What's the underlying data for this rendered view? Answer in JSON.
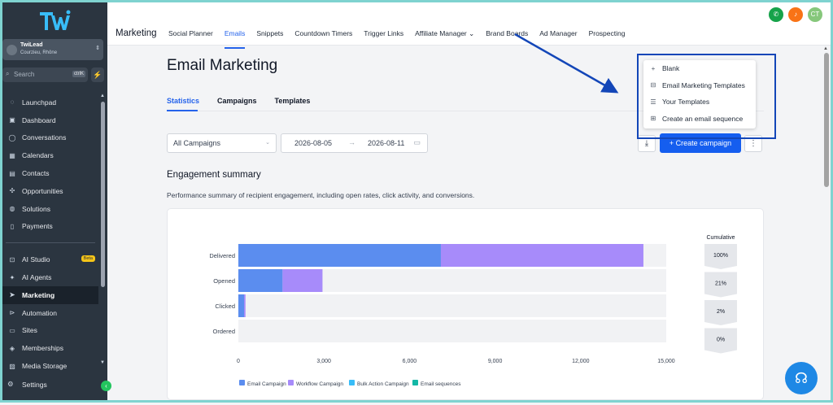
{
  "sidebar": {
    "account": {
      "name": "TwiLead",
      "location": "Courzieu, Rhône"
    },
    "search": {
      "placeholder": "Search",
      "shortcut": "ctrlK"
    },
    "items": [
      {
        "label": "Launchpad",
        "icon": "rocket-icon"
      },
      {
        "label": "Dashboard",
        "icon": "dashboard-icon"
      },
      {
        "label": "Conversations",
        "icon": "chat-icon"
      },
      {
        "label": "Calendars",
        "icon": "calendar-icon"
      },
      {
        "label": "Contacts",
        "icon": "contacts-icon"
      },
      {
        "label": "Opportunities",
        "icon": "opportunities-icon"
      },
      {
        "label": "Solutions",
        "icon": "solutions-icon"
      },
      {
        "label": "Payments",
        "icon": "payments-icon"
      }
    ],
    "items2": [
      {
        "label": "AI Studio",
        "icon": "ai-studio-icon",
        "badge": "Beta"
      },
      {
        "label": "AI Agents",
        "icon": "ai-agents-icon"
      },
      {
        "label": "Marketing",
        "icon": "send-icon",
        "active": true
      },
      {
        "label": "Automation",
        "icon": "automation-icon"
      },
      {
        "label": "Sites",
        "icon": "sites-icon"
      },
      {
        "label": "Memberships",
        "icon": "memberships-icon"
      },
      {
        "label": "Media Storage",
        "icon": "media-icon"
      }
    ],
    "settings": "Settings"
  },
  "topbar": {
    "title": "Marketing",
    "tabs": [
      "Social Planner",
      "Emails",
      "Snippets",
      "Countdown Timers",
      "Trigger Links",
      "Affiliate Manager",
      "Brand Boards",
      "Ad Manager",
      "Prospecting"
    ],
    "active_tab": "Emails",
    "avatar_initials": "CT",
    "colors": {
      "phone": "#16a34a",
      "bell": "#f97316",
      "avatar": "#86c77b"
    }
  },
  "main": {
    "title": "Email Marketing",
    "subtabs": [
      "Statistics",
      "Campaigns",
      "Templates"
    ],
    "filter": "All Campaigns",
    "date_start": "2026-08-05",
    "date_end": "2026-08-11",
    "create_label": "Create campaign",
    "section_title": "Engagement summary",
    "section_desc": "Performance summary of recipient engagement, including open rates, click activity, and conversions."
  },
  "menu": {
    "items": [
      {
        "label": "Blank",
        "icon": "plus-icon"
      },
      {
        "label": "Email Marketing Templates",
        "icon": "inbox-icon"
      },
      {
        "label": "Your Templates",
        "icon": "database-icon"
      },
      {
        "label": "Create an email sequence",
        "icon": "sequence-icon"
      }
    ]
  },
  "chart_data": {
    "type": "bar",
    "orientation": "horizontal",
    "stacked": true,
    "categories": [
      "Delivered",
      "Opened",
      "Clicked",
      "Ordered"
    ],
    "series": [
      {
        "name": "Email Campaign",
        "color": "#5b8def",
        "values": [
          7100,
          1550,
          200,
          0
        ]
      },
      {
        "name": "Workflow Campaign",
        "color": "#a78bfa",
        "values": [
          7100,
          1400,
          50,
          0
        ]
      },
      {
        "name": "Bulk Action Campaign",
        "color": "#38bdf8",
        "values": [
          0,
          0,
          0,
          0
        ]
      },
      {
        "name": "Email sequences",
        "color": "#14b8a6",
        "values": [
          0,
          0,
          0,
          0
        ]
      }
    ],
    "xlim": [
      0,
      15000
    ],
    "xticks": [
      "0",
      "3,000",
      "6,000",
      "9,000",
      "12,000",
      "15,000"
    ],
    "cumulative_label": "Cumulative",
    "cumulative": [
      "100%",
      "21%",
      "2%",
      "0%"
    ],
    "legend_position": "bottom"
  }
}
